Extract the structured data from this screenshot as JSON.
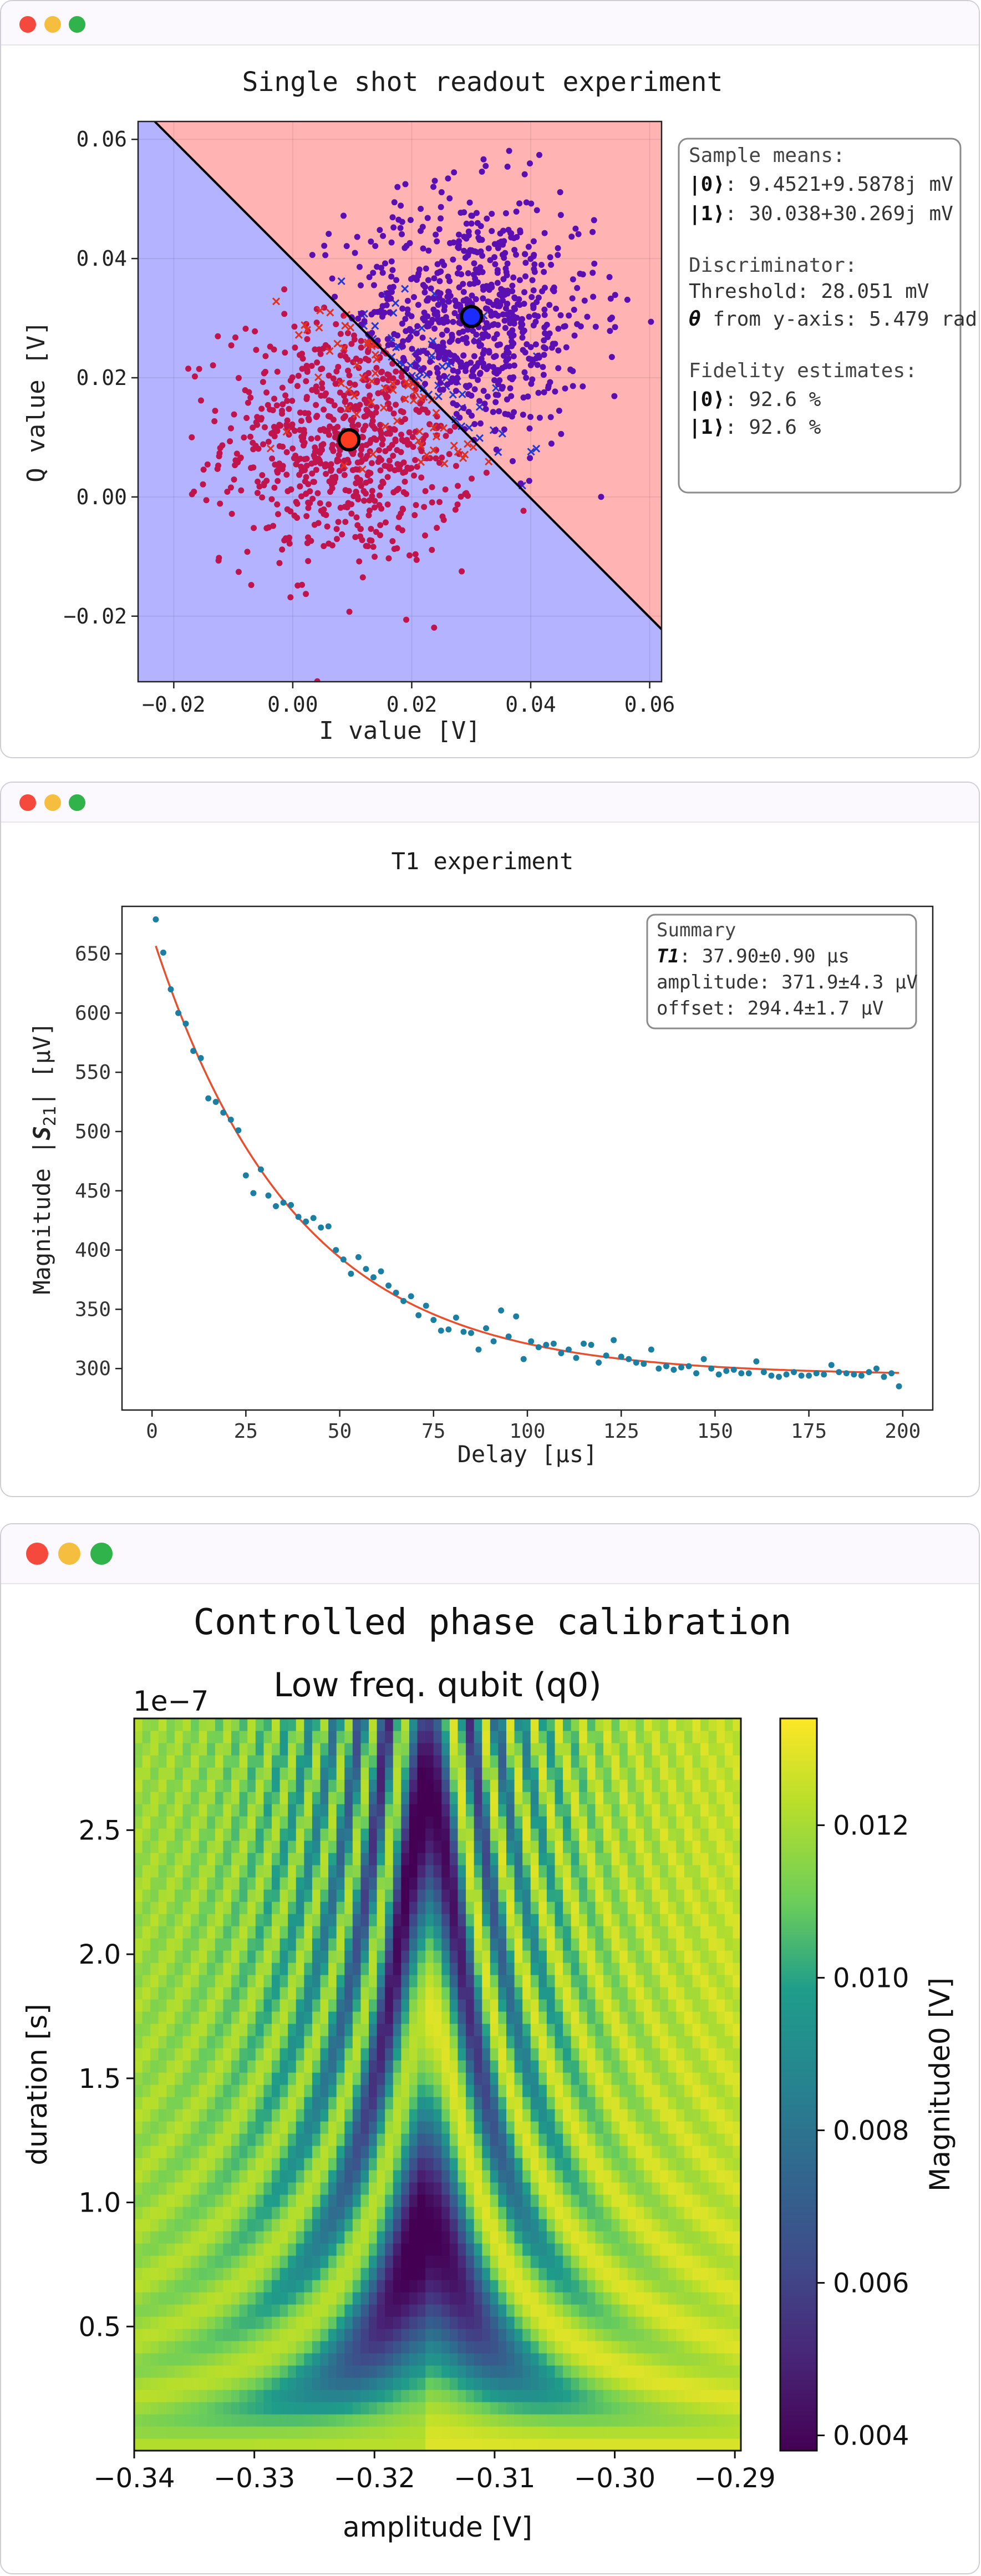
{
  "window_controls": {
    "close_color": "#f5493d",
    "minimize_color": "#f5be3e",
    "maximize_color": "#2fb34a"
  },
  "charts": {
    "readout": {
      "title": "Single shot readout experiment",
      "xlabel": "I value [V]",
      "ylabel": "Q value [V]",
      "xticks": [
        "−0.02",
        "0.00",
        "0.02",
        "0.04",
        "0.06"
      ],
      "yticks": [
        "0.06",
        "0.04",
        "0.02",
        "0.00",
        "−0.02"
      ],
      "info": {
        "means_title": "Sample means:",
        "mean0_state": "|0⟩",
        "mean0_value": ": 9.4521+9.5878j mV",
        "mean1_state": "|1⟩",
        "mean1_value": ": 30.038+30.269j mV",
        "disc_title": "Discriminator:",
        "threshold": "Threshold: 28.051 mV",
        "theta_symbol": "θ",
        "theta_value": " from y-axis: 5.479 rad",
        "fid_title": "Fidelity estimates:",
        "fid0_state": "|0⟩",
        "fid0_value": ": 92.6 %",
        "fid1_state": "|1⟩",
        "fid1_value": ": 92.6 %"
      }
    },
    "t1": {
      "title": "T1 experiment",
      "xlabel": "Delay [μs]",
      "ylabel_pre": "Magnitude |",
      "ylabel_S": "S",
      "ylabel_sub": "21",
      "ylabel_post": "| [μV]",
      "xticks": [
        "0",
        "25",
        "50",
        "75",
        "100",
        "125",
        "150",
        "175",
        "200"
      ],
      "yticks": [
        "650",
        "600",
        "550",
        "500",
        "450",
        "400",
        "350",
        "300"
      ],
      "summary": {
        "title": "Summary",
        "t1_symbol": "T1",
        "t1_value": ": 37.90±0.90 μs",
        "amplitude": "amplitude: 371.9±4.3 μV",
        "offset": "offset: 294.4±1.7 μV"
      }
    },
    "phase": {
      "title": "Controlled phase calibration",
      "subtitle": "Low freq. qubit (q0)",
      "exponent": "1e−7",
      "xlabel": "amplitude [V]",
      "ylabel": "duration [s]",
      "cbar_label": "Magnitude0 [V]",
      "xticks": [
        "−0.34",
        "−0.33",
        "−0.32",
        "−0.31",
        "−0.30",
        "−0.29"
      ],
      "yticks": [
        "2.5",
        "2.0",
        "1.5",
        "1.0",
        "0.5"
      ],
      "cbar_ticks": [
        "0.012",
        "0.010",
        "0.008",
        "0.006",
        "0.004"
      ]
    }
  },
  "chart_data": [
    {
      "type": "scatter",
      "title": "Single shot readout experiment",
      "xlabel": "I value [V]",
      "ylabel": "Q value [V]",
      "xlim": [
        -0.026,
        0.062
      ],
      "ylim": [
        -0.031,
        0.063
      ],
      "series": [
        {
          "name": "|0⟩",
          "mean": [
            0.0094521,
            0.0095878
          ]
        },
        {
          "name": "|1⟩",
          "mean": [
            0.030038,
            0.030269
          ]
        }
      ],
      "threshold_mV": 28.051,
      "theta_rad": 5.479,
      "fidelity": {
        "|0⟩": 92.6,
        "|1⟩": 92.6
      }
    },
    {
      "type": "scatter",
      "title": "T1 experiment",
      "xlabel": "Delay [μs]",
      "ylabel": "Magnitude |S21| [μV]",
      "xlim": [
        -8,
        208
      ],
      "ylim": [
        265,
        690
      ],
      "x": [
        1,
        3,
        5,
        7,
        9,
        11,
        13,
        15,
        17,
        19,
        21,
        23,
        25,
        27,
        29,
        31,
        33,
        35,
        37,
        39,
        41,
        43,
        45,
        47,
        49,
        51,
        53,
        55,
        57,
        59,
        61,
        63,
        65,
        67,
        69,
        71,
        73,
        75,
        77,
        79,
        81,
        83,
        85,
        87,
        89,
        91,
        93,
        95,
        97,
        99,
        101,
        103,
        105,
        107,
        109,
        111,
        113,
        115,
        117,
        119,
        121,
        123,
        125,
        127,
        129,
        131,
        133,
        135,
        137,
        139,
        141,
        143,
        145,
        147,
        149,
        151,
        153,
        155,
        157,
        159,
        161,
        163,
        165,
        167,
        169,
        171,
        173,
        175,
        177,
        179,
        181,
        183,
        185,
        187,
        189,
        191,
        193,
        195,
        197,
        199
      ],
      "y": [
        679,
        651,
        620,
        600,
        591,
        568,
        562,
        528,
        525,
        516,
        510,
        501,
        463,
        448,
        468,
        446,
        437,
        440,
        438,
        428,
        424,
        427,
        419,
        420,
        400,
        392,
        380,
        394,
        384,
        377,
        382,
        370,
        364,
        357,
        361,
        345,
        353,
        341,
        332,
        333,
        343,
        331,
        330,
        316,
        334,
        323,
        349,
        327,
        344,
        308,
        323,
        318,
        320,
        321,
        313,
        316,
        309,
        321,
        320,
        305,
        311,
        324,
        310,
        308,
        305,
        304,
        316,
        300,
        302,
        299,
        301,
        302,
        296,
        308,
        300,
        295,
        298,
        299,
        296,
        296,
        306,
        297,
        294,
        293,
        295,
        297,
        294,
        294,
        296,
        295,
        303,
        297,
        296,
        295,
        294,
        297,
        300,
        293,
        296,
        285
      ],
      "fit": {
        "model": "exponential",
        "T1_us": 37.9,
        "T1_err_us": 0.9,
        "amplitude_uV": 371.9,
        "amplitude_err_uV": 4.3,
        "offset_uV": 294.4,
        "offset_err_uV": 1.7
      }
    },
    {
      "type": "heatmap",
      "title": "Controlled phase calibration",
      "subtitle": "Low freq. qubit (q0)",
      "xlabel": "amplitude [V]",
      "ylabel": "duration [s]",
      "xlim": [
        -0.34,
        -0.2895
      ],
      "ylim": [
        0.0,
        2.95e-07
      ],
      "colorbar": {
        "label": "Magnitude0 [V]",
        "range": [
          0.0038,
          0.0134
        ],
        "colormap": "viridis"
      }
    }
  ]
}
